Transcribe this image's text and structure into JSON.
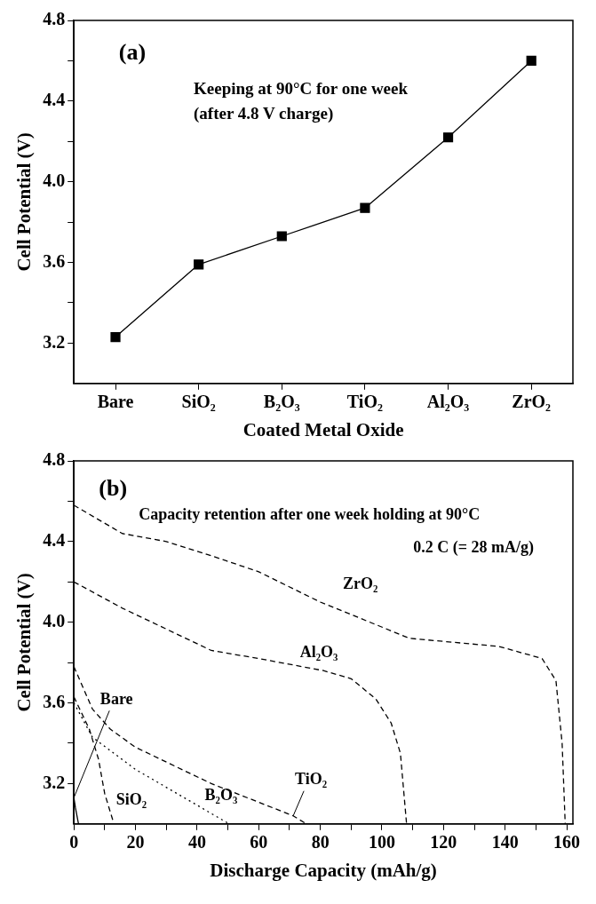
{
  "chart_data": [
    {
      "type": "line",
      "categories": [
        "Bare",
        "SiO₂",
        "B₂O₃",
        "TiO₂",
        "Al₂O₃",
        "ZrO₂"
      ],
      "xlabel": "Coated Metal Oxide",
      "ylabel": "Cell Potential (V)",
      "values": [
        3.23,
        3.59,
        3.73,
        3.87,
        4.22,
        4.6
      ],
      "color": "#000000",
      "marker": "square",
      "line_style": "solid",
      "ylim": [
        3.0,
        4.8
      ],
      "yticks": [
        3.2,
        {
          "value": 3.4,
          "label": null
        },
        3.6,
        {
          "value": 3.8,
          "label": null
        },
        {
          "value": 4.0,
          "label": "4.0"
        },
        {
          "value": 4.2,
          "label": null
        },
        4.4,
        {
          "value": 4.6,
          "label": null
        },
        4.8
      ],
      "annotations": [
        "(a)",
        "Keeping at 90°C for one week",
        "(after 4.8 V charge)"
      ],
      "grid": false,
      "legend": false
    },
    {
      "type": "line",
      "xlabel": "Discharge Capacity (mAh/g)",
      "ylabel": "Cell Potential (V)",
      "marker": "none",
      "series": [
        {
          "name": "ZrO₂",
          "color": "#000000",
          "line_style": "dashed",
          "x": [
            0,
            15.7,
            30,
            44.6,
            60,
            80,
            109,
            138,
            152,
            156.5,
            158.5,
            159.5
          ],
          "values": [
            4.58,
            4.44,
            4.4,
            4.33,
            4.25,
            4.1,
            3.92,
            3.88,
            3.82,
            3.71,
            3.4,
            3.0
          ]
        },
        {
          "name": "Al₂O₃",
          "color": "#000000",
          "line_style": "dashed",
          "x": [
            0,
            15.7,
            44.6,
            60,
            81,
            90,
            98,
            103,
            106,
            108
          ],
          "values": [
            4.2,
            4.07,
            3.86,
            3.82,
            3.76,
            3.72,
            3.62,
            3.5,
            3.35,
            3.0
          ]
        },
        {
          "name": "Bare",
          "color": "#000000",
          "line_style": "solid",
          "x": [
            0,
            0.5,
            1.5
          ],
          "values": [
            3.13,
            3.08,
            3.0
          ]
        },
        {
          "name": "SiO₂",
          "color": "#000000",
          "line_style": "dashed",
          "x": [
            0,
            5,
            8,
            10,
            13
          ],
          "values": [
            3.63,
            3.47,
            3.32,
            3.15,
            3.0
          ]
        },
        {
          "name": "B₂O₃",
          "color": "#000000",
          "line_style": "dotted",
          "x": [
            0,
            6,
            20,
            40.3,
            50.4
          ],
          "values": [
            3.6,
            3.43,
            3.27,
            3.09,
            3.0
          ]
        },
        {
          "name": "TiO₂",
          "color": "#000000",
          "line_style": "dashed",
          "x": [
            0,
            6,
            11.8,
            20,
            44.6,
            71.2,
            75.5
          ],
          "values": [
            3.78,
            3.57,
            3.47,
            3.38,
            3.2,
            3.04,
            3.0
          ]
        }
      ],
      "xlim": [
        0,
        162
      ],
      "xticks": [
        0,
        {
          "value": 10,
          "label": null
        },
        20,
        {
          "value": 30,
          "label": null
        },
        40,
        {
          "value": 50,
          "label": null
        },
        60,
        {
          "value": 70,
          "label": null
        },
        80,
        {
          "value": 90,
          "label": null
        },
        100,
        {
          "value": 110,
          "label": null
        },
        120,
        {
          "value": 130,
          "label": null
        },
        140,
        {
          "value": 150,
          "label": null
        },
        160
      ],
      "ylim": [
        3.0,
        4.8
      ],
      "yticks": [
        3.2,
        {
          "value": 3.4,
          "label": null
        },
        3.6,
        {
          "value": 3.8,
          "label": null
        },
        {
          "value": 4.0,
          "label": "4.0"
        },
        {
          "value": 4.2,
          "label": null
        },
        4.4,
        {
          "value": 4.6,
          "label": null
        },
        4.8
      ],
      "annotations": [
        "(b)",
        "Capacity retention after one week holding at 90°C",
        "0.2 C (= 28 mA/g)"
      ],
      "grid": false,
      "legend": false
    }
  ]
}
